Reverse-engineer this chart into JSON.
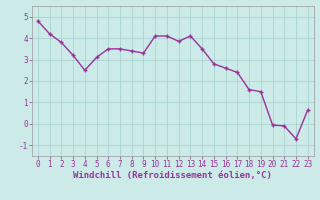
{
  "x": [
    0,
    1,
    2,
    3,
    4,
    5,
    6,
    7,
    8,
    9,
    10,
    11,
    12,
    13,
    14,
    15,
    16,
    17,
    18,
    19,
    20,
    21,
    22,
    23
  ],
  "y": [
    4.8,
    4.2,
    3.8,
    3.2,
    2.5,
    3.1,
    3.5,
    3.5,
    3.4,
    3.3,
    4.1,
    4.1,
    3.85,
    4.1,
    3.5,
    2.8,
    2.6,
    2.4,
    1.6,
    1.5,
    -0.05,
    -0.1,
    -0.7,
    0.65
  ],
  "line_color": "#993399",
  "marker": "+",
  "marker_size": 3.5,
  "bg_color": "#cceae8",
  "grid_color": "#aad4d2",
  "xlabel": "Windchill (Refroidissement éolien,°C)",
  "xlabel_fontsize": 6.5,
  "ylim": [
    -1.5,
    5.5
  ],
  "xlim": [
    -0.5,
    23.5
  ],
  "yticks": [
    -1,
    0,
    1,
    2,
    3,
    4,
    5
  ],
  "xticks": [
    0,
    1,
    2,
    3,
    4,
    5,
    6,
    7,
    8,
    9,
    10,
    11,
    12,
    13,
    14,
    15,
    16,
    17,
    18,
    19,
    20,
    21,
    22,
    23
  ],
  "tick_fontsize": 5.5,
  "line_width": 1.0,
  "marker_edge_width": 1.0
}
